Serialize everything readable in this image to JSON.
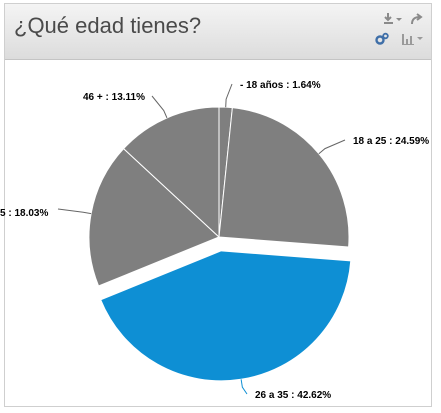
{
  "title": "¿Qué edad tienes?",
  "icons": [
    "download-icon",
    "share-icon",
    "settings-gears-icon",
    "chart-type-icon"
  ],
  "colors": {
    "slice": "#7f7f7f",
    "highlight": "#0e8fd4"
  },
  "chart_data": {
    "type": "pie",
    "title": "¿Qué edad tienes?",
    "slices": [
      {
        "label": "- 18 años",
        "value": 1.64,
        "text": "- 18 años : 1.64%"
      },
      {
        "label": "18 a 25",
        "value": 24.59,
        "text": "18 a 25 : 24.59%"
      },
      {
        "label": "26 a 35",
        "value": 42.62,
        "text": "26 a 35 : 42.62%",
        "exploded": true
      },
      {
        "label": "5",
        "value": 18.03,
        "text": "5 : 18.03%"
      },
      {
        "label": "46 +",
        "value": 13.11,
        "text": "46 + : 13.11%"
      }
    ]
  }
}
